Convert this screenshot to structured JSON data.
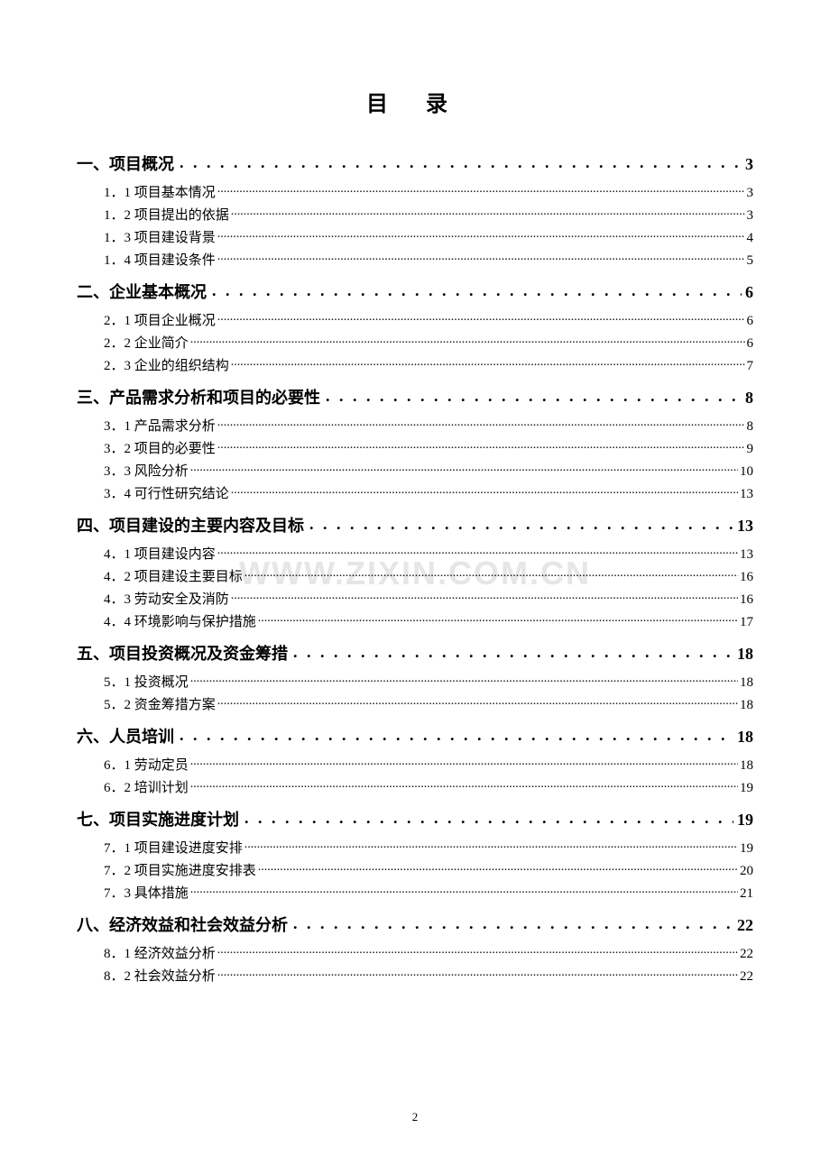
{
  "title": "目  录",
  "watermark": "WWW.ZIXIN.COM.CN",
  "page_number": "2",
  "sections": [
    {
      "label": "一、项目概况",
      "page": "3",
      "subs": [
        {
          "label": "1．1 项目基本情况",
          "page": "3"
        },
        {
          "label": "1．2 项目提出的依据",
          "page": "3"
        },
        {
          "label": "1．3 项目建设背景",
          "page": "4"
        },
        {
          "label": "1．4 项目建设条件",
          "page": "5"
        }
      ]
    },
    {
      "label": "二、企业基本概况",
      "page": "6",
      "subs": [
        {
          "label": "2．1 项目企业概况",
          "page": "6"
        },
        {
          "label": "2．2 企业简介",
          "page": "6"
        },
        {
          "label": "2．3 企业的组织结构",
          "page": "7"
        }
      ]
    },
    {
      "label": "三、产品需求分析和项目的必要性",
      "page": "8",
      "subs": [
        {
          "label": "3．1 产品需求分析",
          "page": "8"
        },
        {
          "label": "3．2 项目的必要性",
          "page": "9"
        },
        {
          "label": "3．3 风险分析",
          "page": "10"
        },
        {
          "label": "3．4 可行性研究结论",
          "page": "13"
        }
      ]
    },
    {
      "label": "四、项目建设的主要内容及目标",
      "page": "13",
      "subs": [
        {
          "label": "4．1 项目建设内容",
          "page": "13"
        },
        {
          "label": "4．2 项目建设主要目标",
          "page": "16"
        },
        {
          "label": "4．3 劳动安全及消防",
          "page": "16"
        },
        {
          "label": "4．4 环境影响与保护措施",
          "page": "17"
        }
      ]
    },
    {
      "label": "五、项目投资概况及资金筹措",
      "page": "18",
      "subs": [
        {
          "label": "5．1 投资概况",
          "page": "18"
        },
        {
          "label": "5．2 资金筹措方案",
          "page": "18"
        }
      ]
    },
    {
      "label": "六、人员培训",
      "page": "18",
      "subs": [
        {
          "label": "6．1 劳动定员",
          "page": "18"
        },
        {
          "label": "6．2 培训计划",
          "page": "19"
        }
      ]
    },
    {
      "label": "七、项目实施进度计划",
      "page": "19",
      "subs": [
        {
          "label": "7．1 项目建设进度安排",
          "page": "19"
        },
        {
          "label": "7．2 项目实施进度安排表",
          "page": "20"
        },
        {
          "label": "7．3 具体措施",
          "page": "21"
        }
      ]
    },
    {
      "label": "八、经济效益和社会效益分析",
      "page": "22",
      "subs": [
        {
          "label": "8．1 经济效益分析",
          "page": "22"
        },
        {
          "label": "8．2 社会效益分析",
          "page": "22"
        }
      ]
    }
  ]
}
